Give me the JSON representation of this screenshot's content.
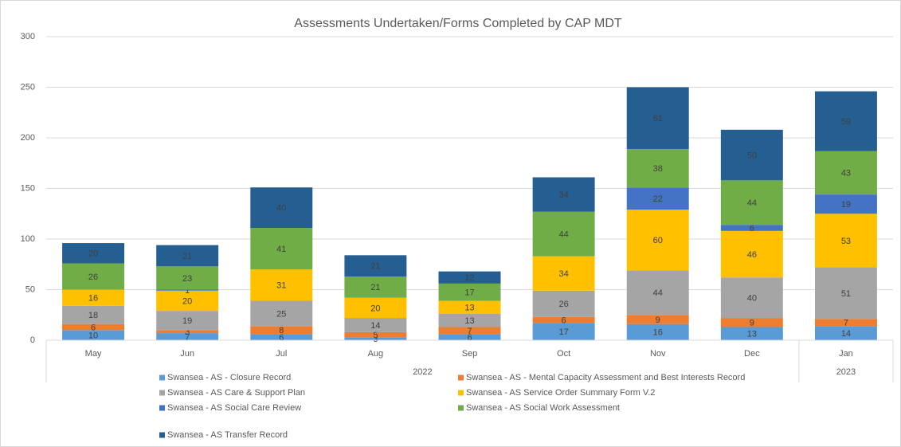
{
  "chart_data": {
    "type": "stacked_bar",
    "title": "Assessments Undertaken/Forms Completed by CAP MDT",
    "categories": [
      "May",
      "Jun",
      "Jul",
      "Aug",
      "Sep",
      "Oct",
      "Nov",
      "Dec",
      "Jan"
    ],
    "category_years": [
      "2022",
      "2022",
      "2022",
      "2022",
      "2022",
      "2022",
      "2022",
      "2022",
      "2023"
    ],
    "ylim": [
      0,
      300
    ],
    "yticks": [
      0,
      50,
      100,
      150,
      200,
      250,
      300
    ],
    "grid": true,
    "legend": "bottom",
    "series": [
      {
        "name": "Swansea - AS - Closure Record",
        "color": "#5b9bd5",
        "values": [
          10,
          7,
          6,
          3,
          6,
          17,
          16,
          13,
          14
        ]
      },
      {
        "name": "Swansea - AS - Mental Capacity Assessment and Best Interests Record",
        "color": "#ed7d31",
        "values": [
          6,
          3,
          8,
          5,
          7,
          6,
          9,
          9,
          7
        ]
      },
      {
        "name": "Swansea - AS Care & Support Plan",
        "color": "#a5a5a5",
        "values": [
          18,
          19,
          25,
          14,
          13,
          26,
          44,
          40,
          51
        ]
      },
      {
        "name": "Swansea - AS Service Order Summary Form V.2",
        "color": "#ffc000",
        "values": [
          16,
          20,
          31,
          20,
          13,
          34,
          60,
          46,
          53
        ]
      },
      {
        "name": "Swansea - AS Social Care Review",
        "color": "#4472c4",
        "values": [
          null,
          1,
          null,
          null,
          null,
          null,
          22,
          6,
          19
        ]
      },
      {
        "name": "Swansea - AS Social Work Assessment",
        "color": "#70ad47",
        "values": [
          26,
          23,
          41,
          21,
          17,
          44,
          38,
          44,
          43
        ]
      },
      {
        "name": "Swansea - AS Transfer Record",
        "color": "#255e91",
        "values": [
          20,
          21,
          40,
          21,
          12,
          34,
          61,
          50,
          59
        ]
      }
    ]
  }
}
